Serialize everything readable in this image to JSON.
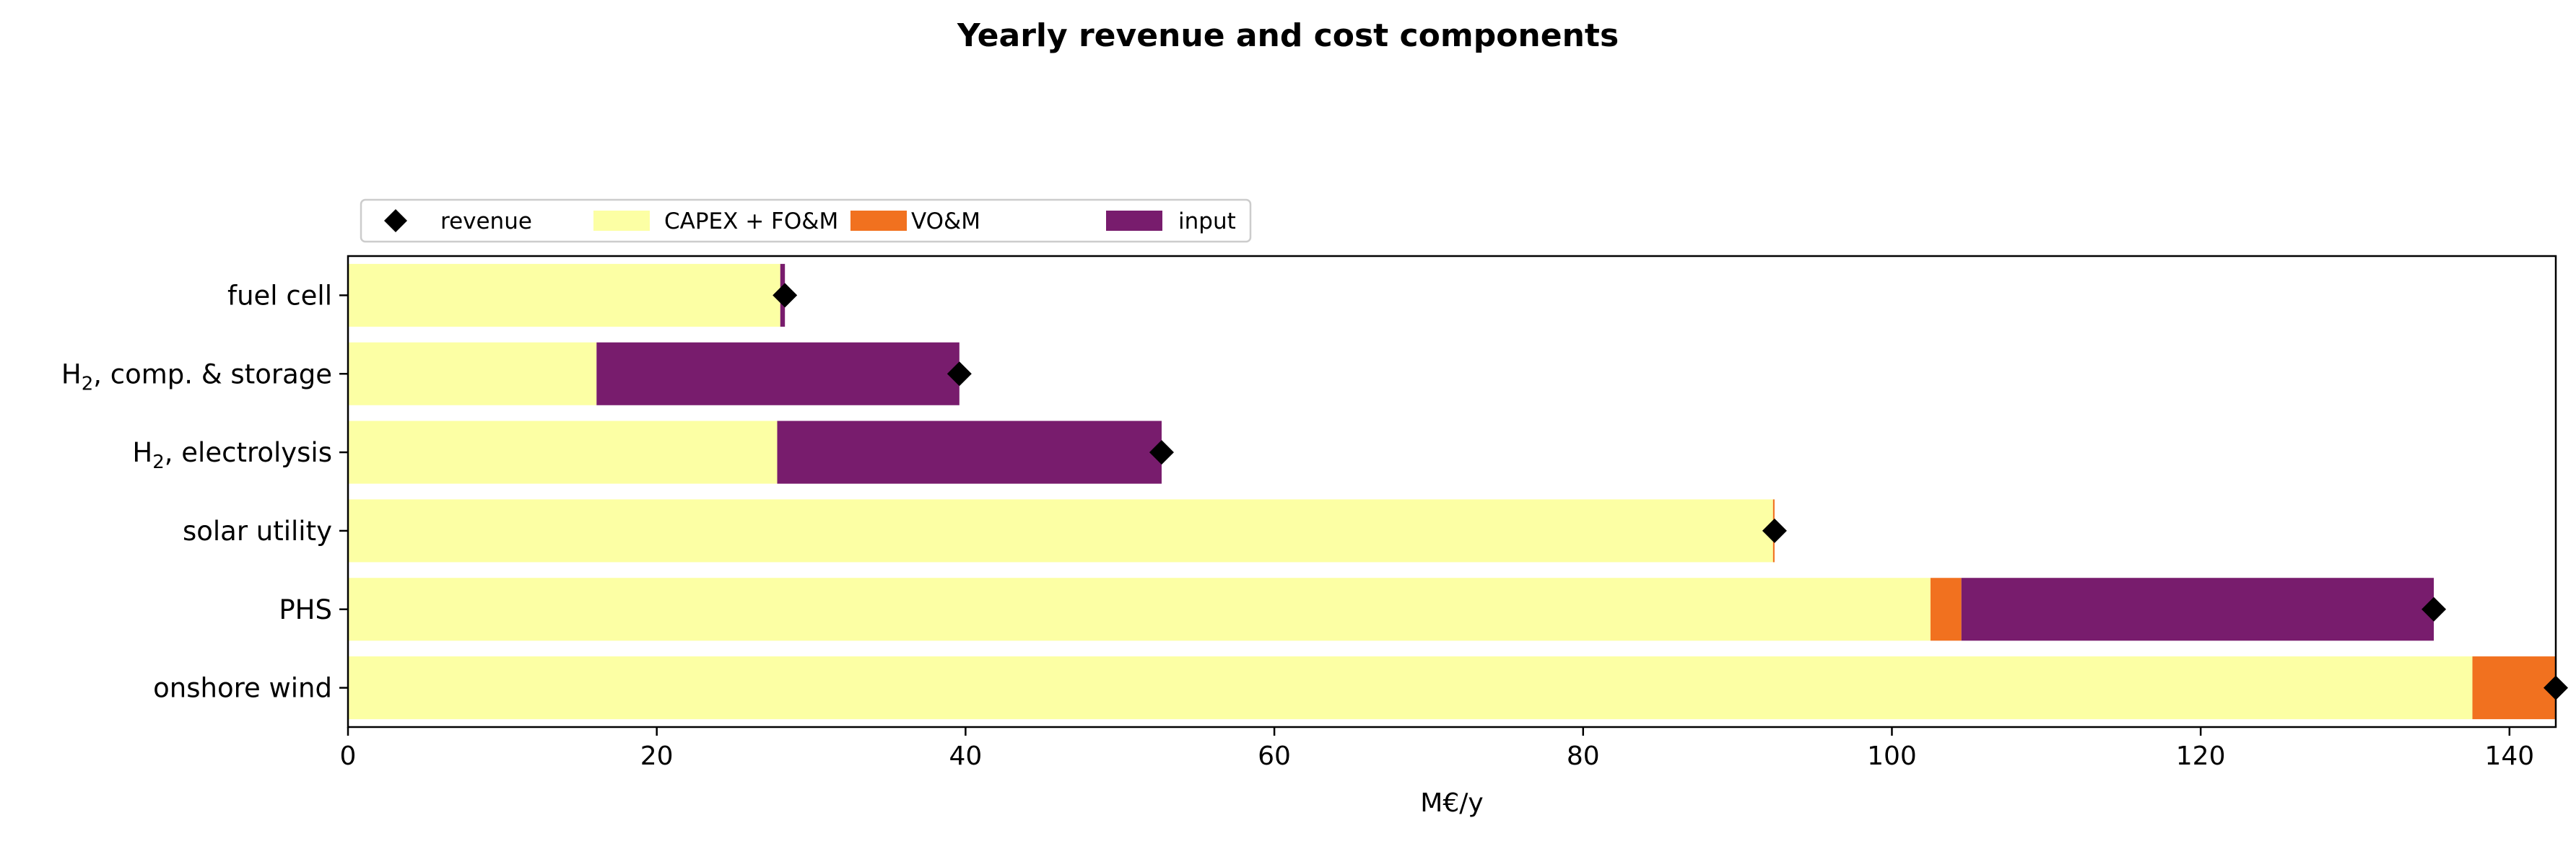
{
  "chart_data": {
    "type": "bar",
    "orientation": "horizontal",
    "stacked": true,
    "title": "Yearly revenue and cost components",
    "xlabel": "M€/y",
    "ylabel": "",
    "xlim": [
      0,
      143
    ],
    "xticks": [
      0,
      20,
      40,
      60,
      80,
      100,
      120,
      140
    ],
    "grid": false,
    "legend_position": "top-left, outside above plot",
    "categories": [
      {
        "pre": "fuel cell",
        "sub": "",
        "post": ""
      },
      {
        "pre": "H",
        "sub": "2",
        "post": ", comp. & storage"
      },
      {
        "pre": "H",
        "sub": "2",
        "post": ", electrolysis"
      },
      {
        "pre": "solar utility",
        "sub": "",
        "post": ""
      },
      {
        "pre": "PHS",
        "sub": "",
        "post": ""
      },
      {
        "pre": "onshore wind",
        "sub": "",
        "post": ""
      }
    ],
    "series": [
      {
        "name": "CAPEX + FO&M",
        "color": "#fcffa4",
        "values": [
          28.0,
          16.1,
          27.8,
          92.3,
          102.5,
          137.6
        ]
      },
      {
        "name": "VO&M",
        "color": "#f1711f",
        "values": [
          0.0,
          0.0,
          0.0,
          0.1,
          2.0,
          5.4
        ]
      },
      {
        "name": "input",
        "color": "#781c6d",
        "values": [
          0.3,
          23.5,
          24.9,
          0.0,
          30.6,
          0.0
        ]
      }
    ],
    "revenue": {
      "name": "revenue",
      "color": "#000000",
      "values": [
        28.3,
        39.6,
        52.7,
        92.4,
        135.1,
        143.0
      ]
    }
  }
}
